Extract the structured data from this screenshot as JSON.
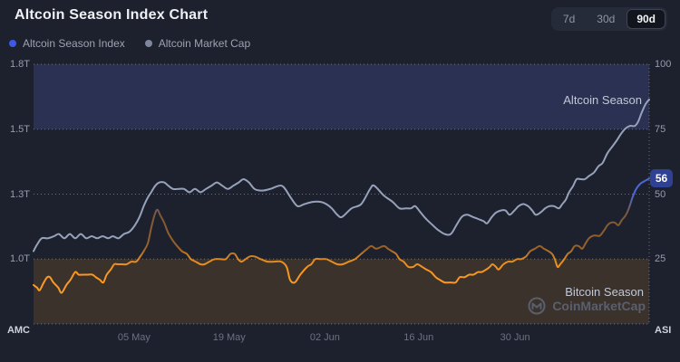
{
  "header": {
    "title": "Altcoin Season Index Chart"
  },
  "range_selector": {
    "options": [
      "7d",
      "30d",
      "90d"
    ],
    "selected": "90d"
  },
  "legend": [
    {
      "label": "Altcoin Season Index",
      "color": "#3E59E9"
    },
    {
      "label": "Altcoin Market Cap",
      "color": "#7E879C"
    }
  ],
  "watermark": {
    "brand": "CoinMarketCap",
    "logo_icon": "circle-m"
  },
  "chart_data": {
    "type": "line",
    "title": "Altcoin Season Index Chart",
    "grid": "dotted-horizontal",
    "current_asi": "56",
    "x_axis": {
      "unit": "days",
      "range_days": 90,
      "tick_labels": [
        "05 May",
        "19 May",
        "02 Jun",
        "16 Jun",
        "30 Jun"
      ],
      "tick_days": [
        14.7,
        28.6,
        42.6,
        56.3,
        70.4
      ]
    },
    "left_axis": {
      "title": "AMC",
      "tick_labels": [
        "1.8T",
        "1.5T",
        "1.3T",
        "1.0T"
      ],
      "tick_values": [
        1.8,
        1.5,
        1.3,
        1.0
      ]
    },
    "right_axis": {
      "title": "ASI",
      "tick_labels": [
        "100",
        "75",
        "50",
        "25"
      ],
      "tick_values": [
        100,
        75,
        50,
        25
      ],
      "range": [
        0,
        100
      ]
    },
    "zones": {
      "altcoin_season": {
        "label": "Altcoin Season",
        "range": [
          75,
          100
        ],
        "color": "#2B3152"
      },
      "bitcoin_season": {
        "label": "Bitcoin Season",
        "range": [
          0,
          25
        ],
        "color": "#3B322C"
      }
    },
    "series": [
      {
        "name": "Altcoin Market Cap",
        "axis": "left",
        "unit": "T",
        "color": "#97A2BA",
        "points": [
          [
            0,
            1.04
          ],
          [
            0.5,
            1.07
          ],
          [
            1.2,
            1.1
          ],
          [
            2.1,
            1.1
          ],
          [
            3.0,
            1.11
          ],
          [
            3.7,
            1.12
          ],
          [
            4.5,
            1.1
          ],
          [
            5.3,
            1.12
          ],
          [
            6.1,
            1.1
          ],
          [
            6.9,
            1.12
          ],
          [
            7.7,
            1.1
          ],
          [
            8.5,
            1.11
          ],
          [
            9.3,
            1.1
          ],
          [
            10.1,
            1.11
          ],
          [
            10.9,
            1.1
          ],
          [
            11.6,
            1.11
          ],
          [
            12.4,
            1.1
          ],
          [
            13.2,
            1.12
          ],
          [
            14.0,
            1.13
          ],
          [
            14.8,
            1.16
          ],
          [
            15.5,
            1.2
          ],
          [
            16.1,
            1.25
          ],
          [
            16.7,
            1.29
          ],
          [
            17.2,
            1.31
          ],
          [
            17.8,
            1.33
          ],
          [
            18.4,
            1.34
          ],
          [
            19.1,
            1.34
          ],
          [
            19.7,
            1.33
          ],
          [
            20.4,
            1.32
          ],
          [
            21.2,
            1.32
          ],
          [
            22.0,
            1.32
          ],
          [
            22.8,
            1.31
          ],
          [
            23.6,
            1.32
          ],
          [
            24.4,
            1.31
          ],
          [
            25.2,
            1.32
          ],
          [
            26.0,
            1.33
          ],
          [
            26.8,
            1.34
          ],
          [
            27.6,
            1.33
          ],
          [
            28.4,
            1.32
          ],
          [
            29.2,
            1.33
          ],
          [
            30.0,
            1.34
          ],
          [
            30.7,
            1.35
          ],
          [
            31.5,
            1.34
          ],
          [
            32.3,
            1.32
          ],
          [
            33.4,
            1.315
          ],
          [
            34.6,
            1.32
          ],
          [
            35.9,
            1.33
          ],
          [
            36.6,
            1.325
          ],
          [
            37.6,
            1.29
          ],
          [
            38.6,
            1.25
          ],
          [
            39.6,
            1.26
          ],
          [
            40.8,
            1.27
          ],
          [
            42.0,
            1.27
          ],
          [
            42.8,
            1.26
          ],
          [
            43.6,
            1.24
          ],
          [
            44.4,
            1.21
          ],
          [
            45.1,
            1.2
          ],
          [
            46.5,
            1.24
          ],
          [
            47.9,
            1.26
          ],
          [
            49.2,
            1.32
          ],
          [
            49.8,
            1.33
          ],
          [
            51.2,
            1.3
          ],
          [
            52.5,
            1.27
          ],
          [
            53.5,
            1.24
          ],
          [
            54.4,
            1.24
          ],
          [
            55.2,
            1.24
          ],
          [
            55.8,
            1.25
          ],
          [
            56.6,
            1.22
          ],
          [
            57.4,
            1.19
          ],
          [
            58.4,
            1.16
          ],
          [
            59.1,
            1.14
          ],
          [
            60.1,
            1.12
          ],
          [
            61.0,
            1.12
          ],
          [
            61.8,
            1.16
          ],
          [
            62.6,
            1.2
          ],
          [
            63.4,
            1.21
          ],
          [
            64.2,
            1.2
          ],
          [
            65.0,
            1.19
          ],
          [
            65.8,
            1.18
          ],
          [
            66.3,
            1.17
          ],
          [
            67.0,
            1.2
          ],
          [
            67.6,
            1.22
          ],
          [
            68.3,
            1.23
          ],
          [
            69.0,
            1.23
          ],
          [
            69.6,
            1.21
          ],
          [
            70.3,
            1.23
          ],
          [
            70.9,
            1.25
          ],
          [
            71.6,
            1.26
          ],
          [
            72.3,
            1.25
          ],
          [
            72.9,
            1.23
          ],
          [
            73.4,
            1.21
          ],
          [
            74.1,
            1.22
          ],
          [
            74.8,
            1.24
          ],
          [
            75.4,
            1.25
          ],
          [
            76.1,
            1.25
          ],
          [
            76.8,
            1.24
          ],
          [
            77.3,
            1.26
          ],
          [
            77.8,
            1.28
          ],
          [
            78.3,
            1.31
          ],
          [
            78.9,
            1.33
          ],
          [
            79.4,
            1.35
          ],
          [
            80.0,
            1.35
          ],
          [
            80.6,
            1.35
          ],
          [
            81.2,
            1.36
          ],
          [
            81.9,
            1.37
          ],
          [
            82.6,
            1.39
          ],
          [
            83.2,
            1.4
          ],
          [
            83.9,
            1.43
          ],
          [
            84.6,
            1.45
          ],
          [
            85.3,
            1.47
          ],
          [
            85.9,
            1.49
          ],
          [
            86.6,
            1.51
          ],
          [
            87.2,
            1.52
          ],
          [
            87.9,
            1.52
          ],
          [
            88.4,
            1.54
          ],
          [
            88.9,
            1.58
          ],
          [
            89.5,
            1.62
          ],
          [
            90,
            1.64
          ]
        ]
      },
      {
        "name": "Altcoin Season Index",
        "axis": "right",
        "unit": "index",
        "color_low": "#F8951F",
        "color_mid": "#7D5836",
        "color_high": "#4C67DA",
        "points": [
          [
            0,
            15
          ],
          [
            0.5,
            14
          ],
          [
            0.9,
            13
          ],
          [
            1.5,
            16
          ],
          [
            2.0,
            18
          ],
          [
            2.4,
            18
          ],
          [
            2.9,
            16
          ],
          [
            3.6,
            14
          ],
          [
            4.1,
            12
          ],
          [
            4.8,
            15
          ],
          [
            5.4,
            17
          ],
          [
            6.1,
            20
          ],
          [
            6.6,
            19
          ],
          [
            7.3,
            19
          ],
          [
            7.9,
            19
          ],
          [
            8.6,
            19
          ],
          [
            9.1,
            18
          ],
          [
            9.7,
            17
          ],
          [
            10.2,
            16
          ],
          [
            10.7,
            19
          ],
          [
            11.3,
            21
          ],
          [
            11.8,
            23
          ],
          [
            12.3,
            23
          ],
          [
            13.0,
            23
          ],
          [
            13.6,
            23
          ],
          [
            14.3,
            24
          ],
          [
            15.0,
            24
          ],
          [
            15.6,
            26
          ],
          [
            16.1,
            28
          ],
          [
            16.7,
            31
          ],
          [
            17.2,
            37
          ],
          [
            17.7,
            42
          ],
          [
            18.1,
            44
          ],
          [
            18.5,
            42
          ],
          [
            19.1,
            39
          ],
          [
            19.7,
            35
          ],
          [
            20.4,
            32
          ],
          [
            21.0,
            30
          ],
          [
            21.7,
            28
          ],
          [
            22.4,
            27
          ],
          [
            23.0,
            25
          ],
          [
            23.7,
            24
          ],
          [
            24.4,
            23
          ],
          [
            25.0,
            23
          ],
          [
            25.7,
            24
          ],
          [
            26.5,
            25
          ],
          [
            27.3,
            25
          ],
          [
            28.1,
            25
          ],
          [
            28.8,
            27
          ],
          [
            29.4,
            27
          ],
          [
            29.9,
            25
          ],
          [
            30.4,
            24
          ],
          [
            31.0,
            25
          ],
          [
            31.6,
            26
          ],
          [
            32.3,
            26
          ],
          [
            33.2,
            25
          ],
          [
            34.2,
            24
          ],
          [
            35.2,
            24
          ],
          [
            36.2,
            24
          ],
          [
            37.0,
            22
          ],
          [
            37.5,
            17
          ],
          [
            38.2,
            16
          ],
          [
            39.0,
            19
          ],
          [
            40.0,
            22
          ],
          [
            40.6,
            23
          ],
          [
            41.2,
            25
          ],
          [
            42.0,
            25
          ],
          [
            42.8,
            25
          ],
          [
            43.6,
            24
          ],
          [
            44.4,
            23
          ],
          [
            45.2,
            23
          ],
          [
            46.1,
            24
          ],
          [
            47.0,
            25
          ],
          [
            47.9,
            27
          ],
          [
            48.8,
            29
          ],
          [
            49.4,
            30
          ],
          [
            50.1,
            29
          ],
          [
            51.2,
            30
          ],
          [
            51.8,
            29
          ],
          [
            52.4,
            28
          ],
          [
            53.0,
            27
          ],
          [
            53.5,
            25
          ],
          [
            54.1,
            24
          ],
          [
            54.8,
            22
          ],
          [
            55.5,
            22
          ],
          [
            56.1,
            23
          ],
          [
            56.8,
            22
          ],
          [
            57.4,
            21
          ],
          [
            58.1,
            20
          ],
          [
            58.8,
            18
          ],
          [
            59.4,
            17
          ],
          [
            60.1,
            16
          ],
          [
            60.9,
            16
          ],
          [
            61.7,
            16
          ],
          [
            62.3,
            18
          ],
          [
            63.0,
            18
          ],
          [
            63.7,
            19
          ],
          [
            64.3,
            19
          ],
          [
            65.0,
            20
          ],
          [
            65.5,
            20
          ],
          [
            66.2,
            21
          ],
          [
            66.7,
            22
          ],
          [
            67.1,
            23
          ],
          [
            67.6,
            22
          ],
          [
            68.0,
            21
          ],
          [
            68.7,
            23
          ],
          [
            69.4,
            24
          ],
          [
            70.0,
            24
          ],
          [
            70.7,
            25
          ],
          [
            71.3,
            25
          ],
          [
            72.0,
            26
          ],
          [
            72.6,
            28
          ],
          [
            73.3,
            29
          ],
          [
            74.0,
            30
          ],
          [
            74.6,
            29
          ],
          [
            75.3,
            28
          ],
          [
            75.8,
            27
          ],
          [
            76.2,
            25
          ],
          [
            76.6,
            22
          ],
          [
            77.0,
            23
          ],
          [
            77.6,
            25
          ],
          [
            78.1,
            27
          ],
          [
            78.6,
            28
          ],
          [
            79.1,
            30
          ],
          [
            79.7,
            30
          ],
          [
            80.2,
            29
          ],
          [
            80.7,
            31
          ],
          [
            81.2,
            33
          ],
          [
            81.8,
            34
          ],
          [
            82.3,
            34
          ],
          [
            82.8,
            34
          ],
          [
            83.4,
            36
          ],
          [
            83.9,
            38
          ],
          [
            84.4,
            39
          ],
          [
            85.0,
            39
          ],
          [
            85.5,
            38
          ],
          [
            86.0,
            40
          ],
          [
            86.6,
            42
          ],
          [
            87.1,
            45
          ],
          [
            87.6,
            49
          ],
          [
            88.1,
            52
          ],
          [
            88.7,
            54
          ],
          [
            89.3,
            55
          ],
          [
            90,
            56
          ]
        ]
      }
    ]
  }
}
